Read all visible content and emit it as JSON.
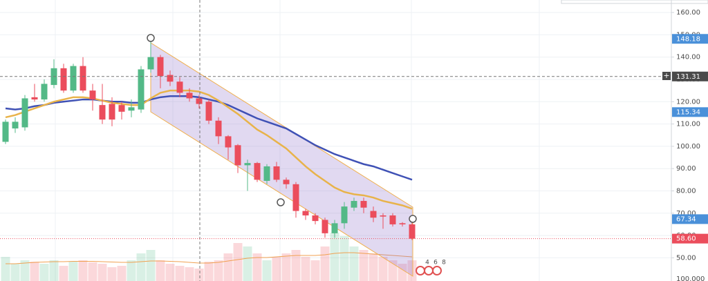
{
  "chart_data": {
    "type": "candlestick",
    "up_color": "#53b987",
    "down_color": "#eb4d5c",
    "ylim": [
      39.6,
      165.6
    ],
    "yticks": [
      {
        "value": 160,
        "label": "160.00"
      },
      {
        "value": 150,
        "label": "150.00"
      },
      {
        "value": 140,
        "label": "140.00"
      },
      {
        "value": 130,
        "label": "130.00"
      },
      {
        "value": 120,
        "label": "120.00"
      },
      {
        "value": 110,
        "label": "110.00"
      },
      {
        "value": 100,
        "label": "100.00"
      },
      {
        "value": 90,
        "label": "90.00"
      },
      {
        "value": 80,
        "label": "80.00"
      },
      {
        "value": 70,
        "label": "70.00"
      },
      {
        "value": 60,
        "label": "60.00"
      },
      {
        "value": 50,
        "label": "50.00"
      }
    ],
    "grid": true,
    "volume_axis_label": "100.000",
    "open": [
      102,
      108,
      108.5,
      122,
      121,
      127.5,
      135,
      125,
      136,
      125,
      118.5,
      119,
      118.5,
      116,
      116.5,
      134.5,
      140,
      132,
      129,
      124,
      121.5,
      120,
      111.5,
      104.5,
      100.5,
      91.5,
      92.5,
      84.5,
      91,
      85,
      83,
      71,
      69,
      67,
      61,
      65.5,
      72.5,
      75.5,
      71,
      69,
      69,
      65.5,
      65
    ],
    "high": [
      112,
      113,
      123,
      128,
      130,
      139,
      137,
      137,
      140,
      128,
      128,
      122,
      120,
      121,
      136,
      147,
      141,
      134,
      131,
      126,
      123,
      121,
      113,
      105,
      101,
      94,
      93,
      92,
      93,
      86,
      84,
      72,
      70,
      68,
      67,
      75,
      77,
      77,
      73,
      70,
      70,
      66,
      66
    ],
    "low": [
      101,
      106,
      107,
      120,
      120,
      126,
      124,
      124,
      124,
      116,
      110,
      109,
      112,
      113,
      115,
      133,
      126,
      127,
      122,
      120,
      117,
      110,
      101,
      94,
      88,
      80,
      84,
      83,
      84,
      81,
      68,
      67,
      65,
      59,
      59,
      63,
      71,
      70,
      66,
      63,
      64,
      64,
      58
    ],
    "close": [
      111,
      111,
      121.5,
      121,
      128,
      135,
      125,
      136,
      125,
      121,
      112,
      112,
      115.5,
      117.5,
      134.5,
      140,
      131.5,
      129,
      124,
      121.5,
      119,
      111.5,
      104.5,
      99.5,
      91.5,
      92.5,
      85,
      91,
      85,
      83,
      71,
      69,
      66.5,
      61,
      65.5,
      73,
      75.5,
      72.5,
      68,
      68.5,
      65,
      65,
      58.6
    ],
    "series": [
      {
        "name": "MA slow",
        "color": "#3f51b5",
        "values": [
          117,
          116.5,
          117,
          118,
          118.5,
          119.5,
          120,
          120.5,
          121,
          121,
          120.5,
          120,
          120,
          119.5,
          119.5,
          121,
          122,
          122.5,
          122.5,
          122.5,
          122,
          121,
          120,
          118.5,
          116.5,
          114.5,
          112.5,
          111,
          109.5,
          108,
          105.5,
          103,
          100.5,
          98.5,
          96.5,
          95,
          93.5,
          92,
          91,
          89.5,
          88,
          86.5,
          85
        ]
      },
      {
        "name": "MA fast",
        "color": "#e8b34a",
        "values": [
          113,
          114,
          115.5,
          117,
          118.5,
          120,
          121,
          122,
          122,
          121.5,
          120.5,
          119.5,
          119,
          118.5,
          118.5,
          121.5,
          124,
          125,
          125,
          125,
          124.5,
          123,
          120.5,
          117.5,
          114.5,
          111,
          107.5,
          105,
          102,
          99,
          95,
          91,
          87.5,
          84.5,
          81.5,
          79.5,
          78.5,
          78,
          77,
          75.5,
          74.5,
          73.5,
          72
        ]
      }
    ],
    "volume": [
      70000,
      50000,
      60000,
      56000,
      50000,
      60000,
      44000,
      56000,
      60000,
      54000,
      50000,
      40000,
      44000,
      60000,
      80000,
      90000,
      60000,
      50000,
      44000,
      40000,
      36000,
      56000,
      60000,
      80000,
      110000,
      100000,
      80000,
      60000,
      70000,
      80000,
      90000,
      70000,
      60000,
      100000,
      140000,
      130000,
      100000,
      90000,
      80000,
      70000,
      60000,
      50000,
      60000
    ],
    "volume_ma": [
      50000,
      50000,
      52000,
      54000,
      55000,
      56000,
      56000,
      57000,
      57000,
      57000,
      56000,
      55000,
      54000,
      54000,
      56000,
      58000,
      58000,
      57000,
      56000,
      54000,
      52000,
      52000,
      54000,
      58000,
      62000,
      66000,
      68000,
      68000,
      70000,
      72000,
      74000,
      74000,
      74000,
      76000,
      80000,
      82000,
      82000,
      80000,
      78000,
      76000,
      74000,
      72000,
      70000
    ],
    "price_labels": [
      {
        "value": 148.18,
        "label": "148.18",
        "color": "#4a90d9"
      },
      {
        "value": 131.31,
        "label": "131.31",
        "color": "#4a4a4a"
      },
      {
        "value": 115.34,
        "label": "115.34",
        "color": "#4a90d9"
      },
      {
        "value": 67.34,
        "label": "67.34",
        "color": "#4a90d9"
      },
      {
        "value": 58.6,
        "label": "58.60",
        "color": "#eb4d5c"
      }
    ],
    "markers": [
      "4",
      "6",
      "8"
    ]
  }
}
